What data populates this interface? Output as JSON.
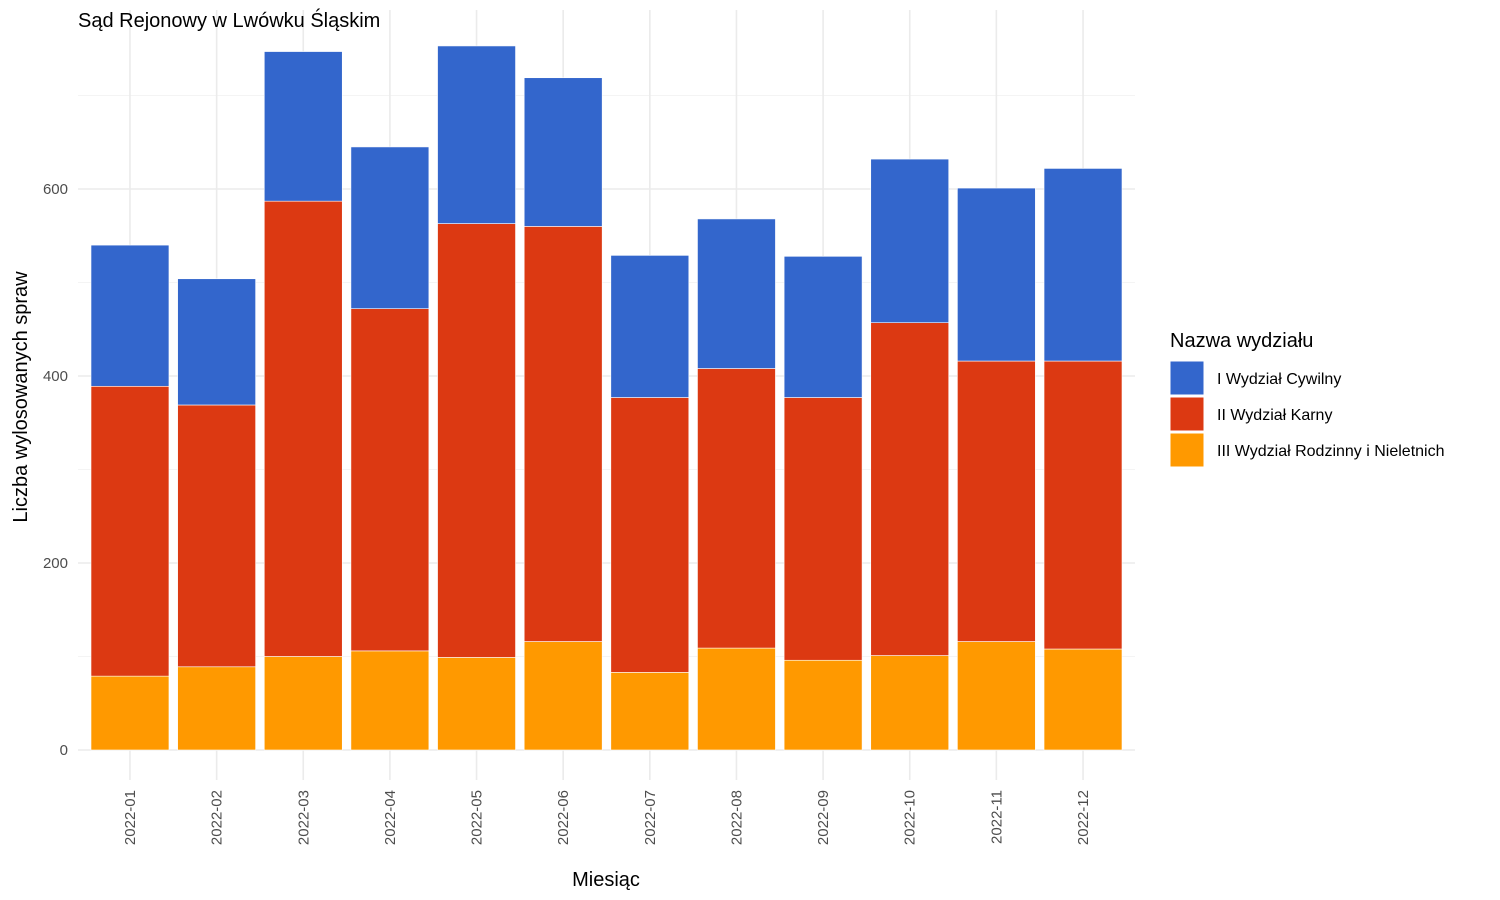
{
  "chart_data": {
    "type": "bar",
    "stacked": true,
    "title": "Sąd Rejonowy w Lwówku Śląskim",
    "xlabel": "Miesiąc",
    "ylabel": "Liczba wylosowanych spraw",
    "ylim": [
      0,
      790
    ],
    "y_ticks": [
      0,
      200,
      400,
      600
    ],
    "grid": true,
    "legend": {
      "title": "Nazwa wydziału",
      "position": "right"
    },
    "categories": [
      "2022-01",
      "2022-02",
      "2022-03",
      "2022-04",
      "2022-05",
      "2022-06",
      "2022-07",
      "2022-08",
      "2022-09",
      "2022-10",
      "2022-11",
      "2022-12"
    ],
    "series": [
      {
        "name": "III Wydział Rodzinny i Nieletnich",
        "color": "#ff9900",
        "values": [
          79,
          89,
          100,
          106,
          99,
          116,
          83,
          109,
          96,
          101,
          116,
          108
        ]
      },
      {
        "name": "II Wydział Karny",
        "color": "#dc3912",
        "values": [
          310,
          280,
          487,
          366,
          464,
          444,
          294,
          299,
          281,
          356,
          300,
          308
        ]
      },
      {
        "name": "I Wydział Cywilny",
        "color": "#3366cc",
        "values": [
          151,
          135,
          160,
          173,
          190,
          159,
          152,
          160,
          151,
          175,
          185,
          206
        ]
      }
    ]
  }
}
